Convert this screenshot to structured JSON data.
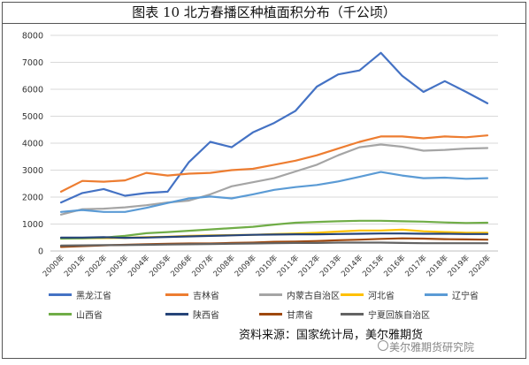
{
  "title": "图表 10  北方春播区种植面积分布（千公顷）",
  "source": "资料来源：国家统计局，美尔雅期货",
  "watermark": "美尔雅期货研究院",
  "colors": {
    "黑龙江省": "#4472C4",
    "吉林省": "#ED7D31",
    "内蒙古自治区": "#A5A5A5",
    "河北省": "#FFC000",
    "辽宁省": "#5B9BD5",
    "山西省": "#70AD47",
    "陕西省": "#264478",
    "甘肃省": "#9E480E",
    "宁夏回族自治区": "#636363"
  },
  "chart_data": {
    "type": "line",
    "title": "",
    "xlabel": "",
    "ylabel": "",
    "ylim": [
      0,
      8000
    ],
    "yticks": [
      0,
      1000,
      2000,
      3000,
      4000,
      5000,
      6000,
      7000,
      8000
    ],
    "grid": true,
    "legend_position": "bottom",
    "x": [
      "2000年",
      "2001年",
      "2002年",
      "2003年",
      "2004年",
      "2005年",
      "2006年",
      "2007年",
      "2008年",
      "2009年",
      "2010年",
      "2011年",
      "2012年",
      "2013年",
      "2014年",
      "2015年",
      "2016年",
      "2017年",
      "2018年",
      "2019年",
      "2020年"
    ],
    "series": [
      {
        "name": "黑龙江省",
        "values": [
          1800,
          2150,
          2300,
          2050,
          2150,
          2200,
          3300,
          4050,
          3850,
          4400,
          4750,
          5200,
          6100,
          6550,
          6700,
          7350,
          6500,
          5900,
          6300,
          5900,
          5480
        ]
      },
      {
        "name": "吉林省",
        "values": [
          2200,
          2600,
          2570,
          2620,
          2900,
          2800,
          2870,
          2900,
          3000,
          3050,
          3200,
          3350,
          3550,
          3800,
          4050,
          4250,
          4250,
          4180,
          4250,
          4220,
          4290
        ]
      },
      {
        "name": "内蒙古自治区",
        "values": [
          1350,
          1550,
          1570,
          1620,
          1700,
          1800,
          1870,
          2100,
          2400,
          2550,
          2700,
          2950,
          3200,
          3550,
          3850,
          3950,
          3870,
          3720,
          3750,
          3800,
          3820
        ]
      },
      {
        "name": "河北省",
        "values": [
          480,
          470,
          480,
          490,
          510,
          530,
          560,
          580,
          590,
          600,
          630,
          650,
          680,
          720,
          760,
          760,
          790,
          730,
          700,
          680,
          680
        ]
      },
      {
        "name": "辽宁省",
        "values": [
          1450,
          1520,
          1450,
          1450,
          1600,
          1780,
          1950,
          2020,
          1950,
          2100,
          2270,
          2370,
          2450,
          2580,
          2750,
          2930,
          2800,
          2700,
          2720,
          2680,
          2700
        ]
      },
      {
        "name": "山西省",
        "values": [
          460,
          470,
          500,
          560,
          660,
          700,
          750,
          800,
          850,
          900,
          980,
          1050,
          1080,
          1100,
          1120,
          1120,
          1100,
          1090,
          1060,
          1040,
          1050
        ]
      },
      {
        "name": "陕西省",
        "values": [
          500,
          500,
          510,
          490,
          500,
          520,
          540,
          560,
          580,
          600,
          610,
          620,
          620,
          630,
          640,
          650,
          650,
          640,
          640,
          630,
          630
        ]
      },
      {
        "name": "甘肃省",
        "values": [
          150,
          180,
          210,
          230,
          250,
          270,
          280,
          280,
          300,
          310,
          340,
          350,
          370,
          400,
          420,
          450,
          470,
          460,
          440,
          430,
          420
        ]
      },
      {
        "name": "宁夏回族自治区",
        "values": [
          200,
          210,
          220,
          220,
          230,
          240,
          250,
          260,
          270,
          280,
          290,
          300,
          300,
          310,
          310,
          310,
          300,
          290,
          290,
          290,
          290
        ]
      }
    ]
  }
}
